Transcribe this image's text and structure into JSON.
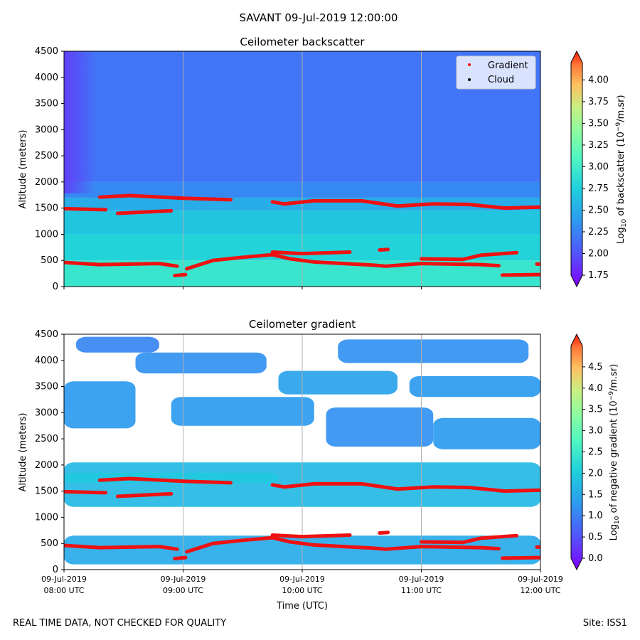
{
  "suptitle": "SAVANT 09-Jul-2019 12:00:00",
  "footer_left": "REAL TIME DATA, NOT CHECKED FOR QUALITY",
  "footer_right": "Site: ISS1",
  "x_axis": {
    "label": "Time (UTC)",
    "range_hours": [
      8,
      12
    ],
    "ticks": [
      {
        "hour": 8,
        "line1": "09-Jul-2019",
        "line2": "08:00 UTC"
      },
      {
        "hour": 9,
        "line1": "09-Jul-2019",
        "line2": "09:00 UTC"
      },
      {
        "hour": 10,
        "line1": "09-Jul-2019",
        "line2": "10:00 UTC"
      },
      {
        "hour": 11,
        "line1": "09-Jul-2019",
        "line2": "11:00 UTC"
      },
      {
        "hour": 12,
        "line1": "09-Jul-2019",
        "line2": "12:00 UTC"
      }
    ]
  },
  "colors": {
    "gradient_marker": "#ee1111",
    "cloud_marker": "#000000",
    "gridline": "#b0b0b0"
  },
  "chart_data": [
    {
      "type": "heatmap",
      "title": "Ceilometer backscatter",
      "xlabel": "Time (UTC)",
      "ylabel": "Altitude (meters)",
      "ylim": [
        0,
        4500
      ],
      "yticks": [
        0,
        500,
        1000,
        1500,
        2000,
        2500,
        3000,
        3500,
        4000,
        4500
      ],
      "colorbar": {
        "label": "Log10 of backscatter (10^-9/m.sr)",
        "label_parts": [
          "Log",
          "10",
          " of backscatter (10",
          "−9",
          "/m.sr)"
        ],
        "range": [
          1.75,
          4.2
        ],
        "ticks": [
          "1.75",
          "2.00",
          "2.25",
          "2.50",
          "2.75",
          "3.00",
          "3.25",
          "3.50",
          "3.75",
          "4.00"
        ]
      },
      "legend": {
        "position": "top-right",
        "entries": [
          {
            "label": "Gradient",
            "marker": "red dot"
          },
          {
            "label": "Cloud",
            "marker": "black dot"
          }
        ]
      },
      "field_bands": [
        {
          "alt_from": 0,
          "alt_to": 500,
          "value": 2.95
        },
        {
          "alt_from": 500,
          "alt_to": 1000,
          "value": 2.8
        },
        {
          "alt_from": 1000,
          "alt_to": 1450,
          "value": 2.7
        },
        {
          "alt_from": 1450,
          "alt_to": 1700,
          "value": 2.55
        },
        {
          "alt_from": 1700,
          "alt_to": 2000,
          "value": 2.35
        },
        {
          "alt_from": 2000,
          "alt_to": 4500,
          "value": 2.25
        }
      ]
    },
    {
      "type": "heatmap",
      "title": "Ceilometer gradient",
      "xlabel": "Time (UTC)",
      "ylabel": "Altitude (meters)",
      "ylim": [
        0,
        4500
      ],
      "yticks": [
        0,
        500,
        1000,
        1500,
        2000,
        2500,
        3000,
        3500,
        4000,
        4500
      ],
      "colorbar": {
        "label": "Log10 of negative gradient (10^-9/m.sr)",
        "label_parts": [
          "Log",
          "10",
          " of negative gradient (10",
          "−9",
          "/m.sr)"
        ],
        "range": [
          0,
          5.0
        ],
        "ticks": [
          "0.0",
          "0.5",
          "1.0",
          "1.5",
          "2.0",
          "2.5",
          "3.0",
          "3.5",
          "4.0",
          "4.5"
        ]
      },
      "layers": [
        {
          "t_start": 8.0,
          "t_end": 12.0,
          "alt_low": 1200,
          "alt_high": 2050,
          "value": 1.8
        },
        {
          "t_start": 8.0,
          "t_end": 12.0,
          "alt_low": 100,
          "alt_high": 650,
          "value": 1.6
        },
        {
          "t_start": 8.0,
          "t_end": 9.8,
          "alt_low": 1650,
          "alt_high": 1850,
          "value": 2.0
        },
        {
          "t_start": 8.0,
          "t_end": 8.6,
          "alt_low": 2700,
          "alt_high": 3600,
          "value": 1.4
        },
        {
          "t_start": 8.9,
          "t_end": 10.1,
          "alt_low": 2750,
          "alt_high": 3300,
          "value": 1.4
        },
        {
          "t_start": 10.2,
          "t_end": 11.1,
          "alt_low": 2350,
          "alt_high": 3100,
          "value": 1.3
        },
        {
          "t_start": 11.1,
          "t_end": 12.0,
          "alt_low": 2300,
          "alt_high": 2900,
          "value": 1.4
        },
        {
          "t_start": 8.6,
          "t_end": 9.7,
          "alt_low": 3750,
          "alt_high": 4150,
          "value": 1.3
        },
        {
          "t_start": 9.8,
          "t_end": 10.8,
          "alt_low": 3350,
          "alt_high": 3800,
          "value": 1.5
        },
        {
          "t_start": 10.9,
          "t_end": 12.0,
          "alt_low": 3300,
          "alt_high": 3700,
          "value": 1.4
        },
        {
          "t_start": 8.1,
          "t_end": 8.8,
          "alt_low": 4150,
          "alt_high": 4450,
          "value": 1.2
        },
        {
          "t_start": 10.3,
          "t_end": 11.9,
          "alt_low": 3950,
          "alt_high": 4400,
          "value": 1.3
        }
      ]
    }
  ],
  "overlay_series": {
    "name": "Gradient",
    "segments": [
      [
        [
          8.0,
          1490
        ],
        [
          8.35,
          1470
        ]
      ],
      [
        [
          8.3,
          1710
        ],
        [
          8.55,
          1740
        ],
        [
          9.0,
          1690
        ],
        [
          9.4,
          1660
        ]
      ],
      [
        [
          8.45,
          1400
        ],
        [
          8.9,
          1450
        ]
      ],
      [
        [
          7.95,
          470
        ],
        [
          8.3,
          420
        ],
        [
          8.8,
          440
        ],
        [
          8.95,
          390
        ]
      ],
      [
        [
          8.93,
          210
        ],
        [
          9.02,
          230
        ]
      ],
      [
        [
          9.03,
          340
        ],
        [
          9.25,
          500
        ],
        [
          9.5,
          560
        ],
        [
          9.75,
          610
        ],
        [
          9.9,
          530
        ],
        [
          10.1,
          470
        ],
        [
          10.6,
          410
        ],
        [
          10.7,
          390
        ],
        [
          11.0,
          440
        ],
        [
          11.5,
          420
        ],
        [
          11.65,
          400
        ]
      ],
      [
        [
          9.75,
          660
        ],
        [
          10.0,
          630
        ],
        [
          10.4,
          660
        ]
      ],
      [
        [
          9.75,
          1620
        ],
        [
          9.85,
          1580
        ],
        [
          10.1,
          1640
        ],
        [
          10.5,
          1640
        ],
        [
          10.8,
          1540
        ],
        [
          11.1,
          1580
        ],
        [
          11.4,
          1570
        ],
        [
          11.7,
          1500
        ],
        [
          12.0,
          1520
        ]
      ],
      [
        [
          10.65,
          700
        ],
        [
          10.72,
          710
        ]
      ],
      [
        [
          11.0,
          530
        ],
        [
          11.35,
          520
        ],
        [
          11.5,
          600
        ],
        [
          11.8,
          650
        ]
      ],
      [
        [
          11.68,
          220
        ],
        [
          12.0,
          230
        ]
      ],
      [
        [
          11.97,
          430
        ],
        [
          12.0,
          430
        ]
      ]
    ]
  }
}
